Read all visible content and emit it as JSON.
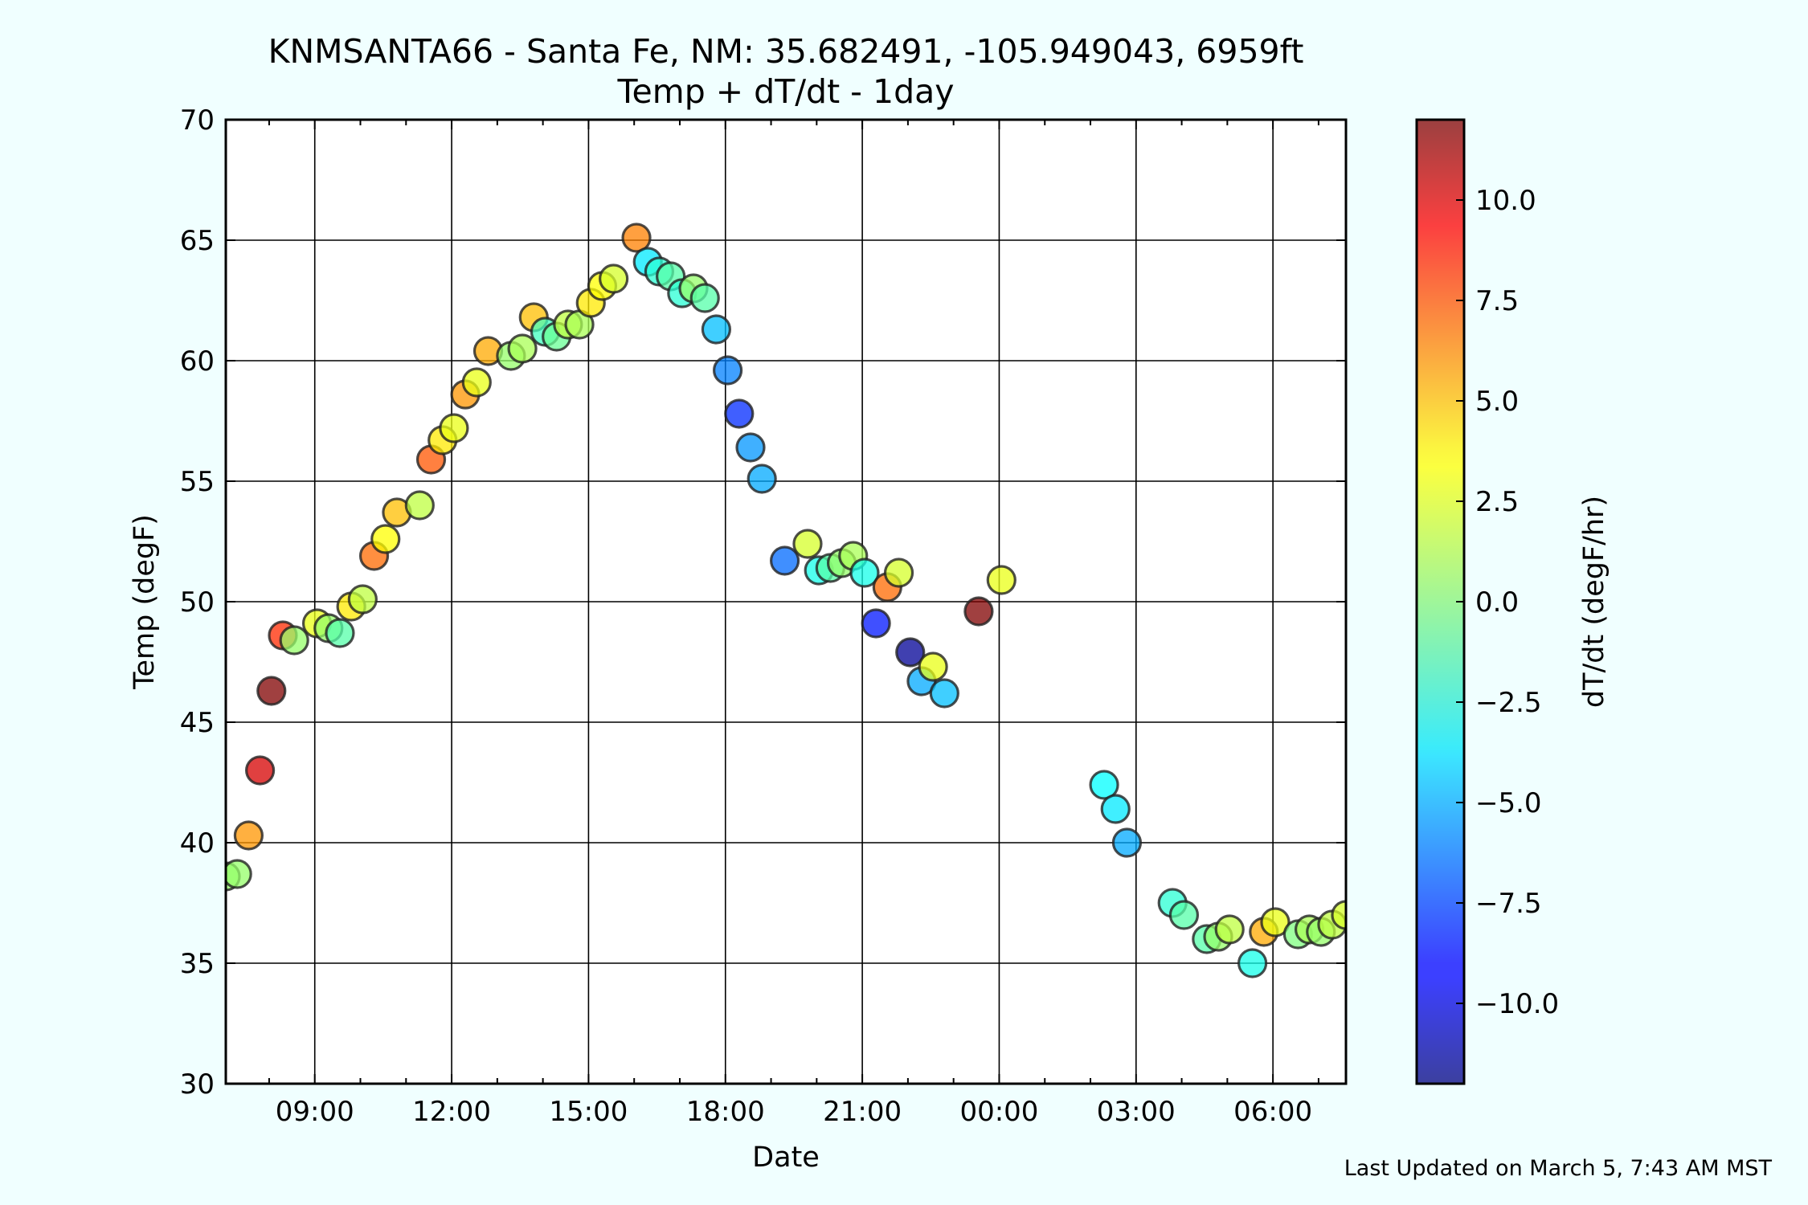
{
  "chart_data": {
    "type": "scatter",
    "title": "KNMSANTA66 - Santa Fe, NM: 35.682491, -105.949043, 6959ft",
    "subtitle": "Temp + dT/dt - 1day",
    "xlabel": "Date",
    "ylabel": "Temp (degF)",
    "colorbar_label": "dT/dt (degF/hr)",
    "footer": "Last Updated on March 5, 7:43 AM MST",
    "xlim": [
      7.05,
      31.6
    ],
    "ylim": [
      30,
      70
    ],
    "colorbar_lim": [
      -12,
      12
    ],
    "grid": true,
    "colormap": "jet",
    "x_ticks": [
      {
        "value": 9,
        "label": "09:00"
      },
      {
        "value": 12,
        "label": "12:00"
      },
      {
        "value": 15,
        "label": "15:00"
      },
      {
        "value": 18,
        "label": "18:00"
      },
      {
        "value": 21,
        "label": "21:00"
      },
      {
        "value": 24,
        "label": "00:00"
      },
      {
        "value": 27,
        "label": "03:00"
      },
      {
        "value": 30,
        "label": "06:00"
      }
    ],
    "y_ticks": [
      {
        "value": 30,
        "label": "30"
      },
      {
        "value": 35,
        "label": "35"
      },
      {
        "value": 40,
        "label": "40"
      },
      {
        "value": 45,
        "label": "45"
      },
      {
        "value": 50,
        "label": "50"
      },
      {
        "value": 55,
        "label": "55"
      },
      {
        "value": 60,
        "label": "60"
      },
      {
        "value": 65,
        "label": "65"
      },
      {
        "value": 70,
        "label": "70"
      }
    ],
    "colorbar_ticks": [
      {
        "value": 10,
        "label": "10.0"
      },
      {
        "value": 7.5,
        "label": "7.5"
      },
      {
        "value": 5,
        "label": "5.0"
      },
      {
        "value": 2.5,
        "label": "2.5"
      },
      {
        "value": 0,
        "label": "0.0"
      },
      {
        "value": -2.5,
        "label": "−2.5"
      },
      {
        "value": -5,
        "label": "−5.0"
      },
      {
        "value": -7.5,
        "label": "−7.5"
      },
      {
        "value": -10,
        "label": "−10.0"
      }
    ],
    "points": [
      {
        "x": 7.05,
        "y": 38.6,
        "c": 0.5
      },
      {
        "x": 7.3,
        "y": 38.7,
        "c": 0.5
      },
      {
        "x": 7.55,
        "y": 40.3,
        "c": 5.5
      },
      {
        "x": 7.8,
        "y": 43.0,
        "c": 10.0
      },
      {
        "x": 8.05,
        "y": 46.3,
        "c": 12.0
      },
      {
        "x": 8.3,
        "y": 48.6,
        "c": 8.0
      },
      {
        "x": 8.55,
        "y": 48.4,
        "c": 0.5
      },
      {
        "x": 9.05,
        "y": 49.1,
        "c": 2.5
      },
      {
        "x": 9.3,
        "y": 48.9,
        "c": 0.5
      },
      {
        "x": 9.55,
        "y": 48.7,
        "c": -1.0
      },
      {
        "x": 9.8,
        "y": 49.8,
        "c": 3.5
      },
      {
        "x": 10.05,
        "y": 50.1,
        "c": 1.5
      },
      {
        "x": 10.3,
        "y": 51.9,
        "c": 6.5
      },
      {
        "x": 10.55,
        "y": 52.6,
        "c": 3.0
      },
      {
        "x": 10.8,
        "y": 53.7,
        "c": 4.5
      },
      {
        "x": 11.3,
        "y": 54.0,
        "c": 1.5
      },
      {
        "x": 11.55,
        "y": 55.9,
        "c": 7.0
      },
      {
        "x": 11.8,
        "y": 56.7,
        "c": 3.5
      },
      {
        "x": 12.05,
        "y": 57.2,
        "c": 2.5
      },
      {
        "x": 12.3,
        "y": 58.6,
        "c": 5.5
      },
      {
        "x": 12.55,
        "y": 59.1,
        "c": 2.5
      },
      {
        "x": 12.8,
        "y": 60.4,
        "c": 5.0
      },
      {
        "x": 13.3,
        "y": 60.2,
        "c": 0.5
      },
      {
        "x": 13.55,
        "y": 60.5,
        "c": 1.0
      },
      {
        "x": 13.8,
        "y": 61.8,
        "c": 4.5
      },
      {
        "x": 14.05,
        "y": 61.2,
        "c": -1.5
      },
      {
        "x": 14.3,
        "y": 61.0,
        "c": -0.5
      },
      {
        "x": 14.55,
        "y": 61.5,
        "c": 1.5
      },
      {
        "x": 14.8,
        "y": 61.5,
        "c": 1.0
      },
      {
        "x": 15.05,
        "y": 62.4,
        "c": 3.5
      },
      {
        "x": 15.3,
        "y": 63.1,
        "c": 3.0
      },
      {
        "x": 15.55,
        "y": 63.4,
        "c": 2.0
      },
      {
        "x": 16.05,
        "y": 65.1,
        "c": 6.0
      },
      {
        "x": 16.3,
        "y": 64.1,
        "c": -3.5
      },
      {
        "x": 16.55,
        "y": 63.7,
        "c": -2.0
      },
      {
        "x": 16.8,
        "y": 63.5,
        "c": -1.0
      },
      {
        "x": 17.05,
        "y": 62.8,
        "c": -2.0
      },
      {
        "x": 17.3,
        "y": 63.0,
        "c": 0.5
      },
      {
        "x": 17.55,
        "y": 62.6,
        "c": -1.0
      },
      {
        "x": 17.8,
        "y": 61.3,
        "c": -4.5
      },
      {
        "x": 18.05,
        "y": 59.6,
        "c": -6.0
      },
      {
        "x": 18.3,
        "y": 57.8,
        "c": -8.0
      },
      {
        "x": 18.55,
        "y": 56.4,
        "c": -5.5
      },
      {
        "x": 18.8,
        "y": 55.1,
        "c": -5.0
      },
      {
        "x": 19.3,
        "y": 51.7,
        "c": -6.5
      },
      {
        "x": 19.8,
        "y": 52.4,
        "c": 2.0
      },
      {
        "x": 20.05,
        "y": 51.3,
        "c": -2.5
      },
      {
        "x": 20.3,
        "y": 51.4,
        "c": -1.0
      },
      {
        "x": 20.55,
        "y": 51.6,
        "c": 0.5
      },
      {
        "x": 20.8,
        "y": 51.9,
        "c": 1.0
      },
      {
        "x": 21.05,
        "y": 51.2,
        "c": -2.5
      },
      {
        "x": 21.3,
        "y": 49.1,
        "c": -8.5
      },
      {
        "x": 21.55,
        "y": 50.6,
        "c": 6.5
      },
      {
        "x": 21.8,
        "y": 51.2,
        "c": 2.0
      },
      {
        "x": 22.05,
        "y": 47.9,
        "c": -11.5
      },
      {
        "x": 22.3,
        "y": 46.7,
        "c": -5.0
      },
      {
        "x": 22.55,
        "y": 47.3,
        "c": 2.5
      },
      {
        "x": 22.8,
        "y": 46.2,
        "c": -4.5
      },
      {
        "x": 23.55,
        "y": 49.6,
        "c": 12.0
      },
      {
        "x": 24.05,
        "y": 50.9,
        "c": 2.5
      },
      {
        "x": 26.3,
        "y": 42.4,
        "c": -3.0
      },
      {
        "x": 26.55,
        "y": 41.4,
        "c": -3.5
      },
      {
        "x": 26.8,
        "y": 40.0,
        "c": -5.0
      },
      {
        "x": 27.8,
        "y": 37.5,
        "c": -2.0
      },
      {
        "x": 28.05,
        "y": 37.0,
        "c": -1.0
      },
      {
        "x": 28.55,
        "y": 36.0,
        "c": -1.0
      },
      {
        "x": 28.8,
        "y": 36.1,
        "c": 0.5
      },
      {
        "x": 29.05,
        "y": 36.4,
        "c": 1.5
      },
      {
        "x": 29.55,
        "y": 35.0,
        "c": -2.5
      },
      {
        "x": 29.8,
        "y": 36.3,
        "c": 5.0
      },
      {
        "x": 30.05,
        "y": 36.7,
        "c": 2.5
      },
      {
        "x": 30.55,
        "y": 36.2,
        "c": 0.0
      },
      {
        "x": 30.8,
        "y": 36.4,
        "c": 1.0
      },
      {
        "x": 31.05,
        "y": 36.3,
        "c": 0.5
      },
      {
        "x": 31.3,
        "y": 36.6,
        "c": 1.5
      },
      {
        "x": 31.6,
        "y": 37.0,
        "c": 2.0
      }
    ]
  }
}
